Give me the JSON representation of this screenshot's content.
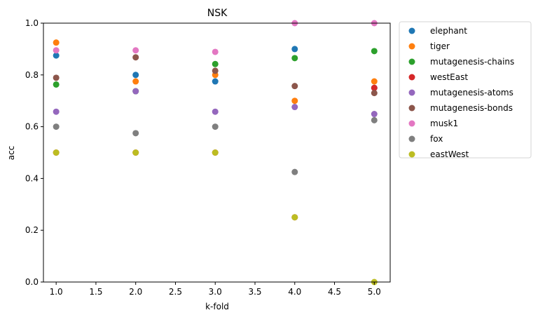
{
  "chart_data": {
    "type": "scatter",
    "title": "NSK",
    "xlabel": "k-fold",
    "ylabel": "acc",
    "xlim": [
      0.84,
      5.2
    ],
    "ylim": [
      0.0,
      1.0
    ],
    "x_ticks": [
      1.0,
      1.5,
      2.0,
      2.5,
      3.0,
      3.5,
      4.0,
      4.5,
      5.0
    ],
    "x_tick_labels": [
      "1.0",
      "1.5",
      "2.0",
      "2.5",
      "3.0",
      "3.5",
      "4.0",
      "4.5",
      "5.0"
    ],
    "y_ticks": [
      0.0,
      0.2,
      0.4,
      0.6,
      0.8,
      1.0
    ],
    "y_tick_labels": [
      "0.0",
      "0.2",
      "0.4",
      "0.6",
      "0.8",
      "1.0"
    ],
    "grid": false,
    "legend_position": "outside-right-top",
    "x": [
      1,
      2,
      3,
      4,
      5
    ],
    "series": [
      {
        "name": "elephant",
        "color": "#1f77b4",
        "values": [
          0.875,
          0.8,
          0.775,
          0.9,
          0.75
        ]
      },
      {
        "name": "tiger",
        "color": "#ff7f0e",
        "values": [
          0.925,
          0.775,
          0.8,
          0.7,
          0.775
        ]
      },
      {
        "name": "mutagenesis-chains",
        "color": "#2ca02c",
        "values": [
          0.763,
          0.737,
          0.842,
          0.865,
          0.892
        ]
      },
      {
        "name": "westEast",
        "color": "#d62728",
        "values": [
          0.5,
          0.5,
          0.5,
          0.25,
          0.75
        ]
      },
      {
        "name": "mutagenesis-atoms",
        "color": "#9467bd",
        "values": [
          0.658,
          0.737,
          0.658,
          0.676,
          0.649
        ]
      },
      {
        "name": "mutagenesis-bonds",
        "color": "#8c564b",
        "values": [
          0.789,
          0.868,
          0.816,
          0.757,
          0.73
        ]
      },
      {
        "name": "musk1",
        "color": "#e377c2",
        "values": [
          0.895,
          0.895,
          0.889,
          1.0,
          1.0
        ]
      },
      {
        "name": "fox",
        "color": "#7f7f7f",
        "values": [
          0.6,
          0.575,
          0.6,
          0.425,
          0.625
        ]
      },
      {
        "name": "eastWest",
        "color": "#bcbd22",
        "values": [
          0.5,
          0.5,
          0.5,
          0.25,
          0.0
        ]
      }
    ]
  }
}
